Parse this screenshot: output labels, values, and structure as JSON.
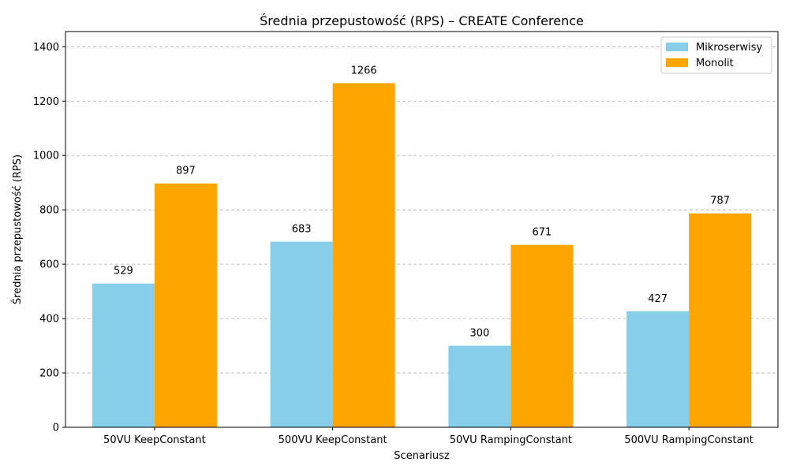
{
  "chart_data": {
    "type": "bar",
    "title": "Średnia przepustowość (RPS) – CREATE Conference",
    "xlabel": "Scenariusz",
    "ylabel": "Średnia przepustowość (RPS)",
    "categories": [
      "50VU KeepConstant",
      "500VU KeepConstant",
      "50VU RampingConstant",
      "500VU RampingConstant"
    ],
    "series": [
      {
        "name": "Mikroserwisy",
        "color": "#87ceeb",
        "values": [
          529,
          683,
          300,
          427
        ]
      },
      {
        "name": "Monolit",
        "color": "#ffa500",
        "values": [
          897,
          1266,
          671,
          787
        ]
      }
    ],
    "ylim": [
      0,
      1456
    ],
    "yticks": [
      0,
      200,
      400,
      600,
      800,
      1000,
      1200,
      1400
    ],
    "grid": "y-dashed",
    "legend_position": "top-right"
  }
}
